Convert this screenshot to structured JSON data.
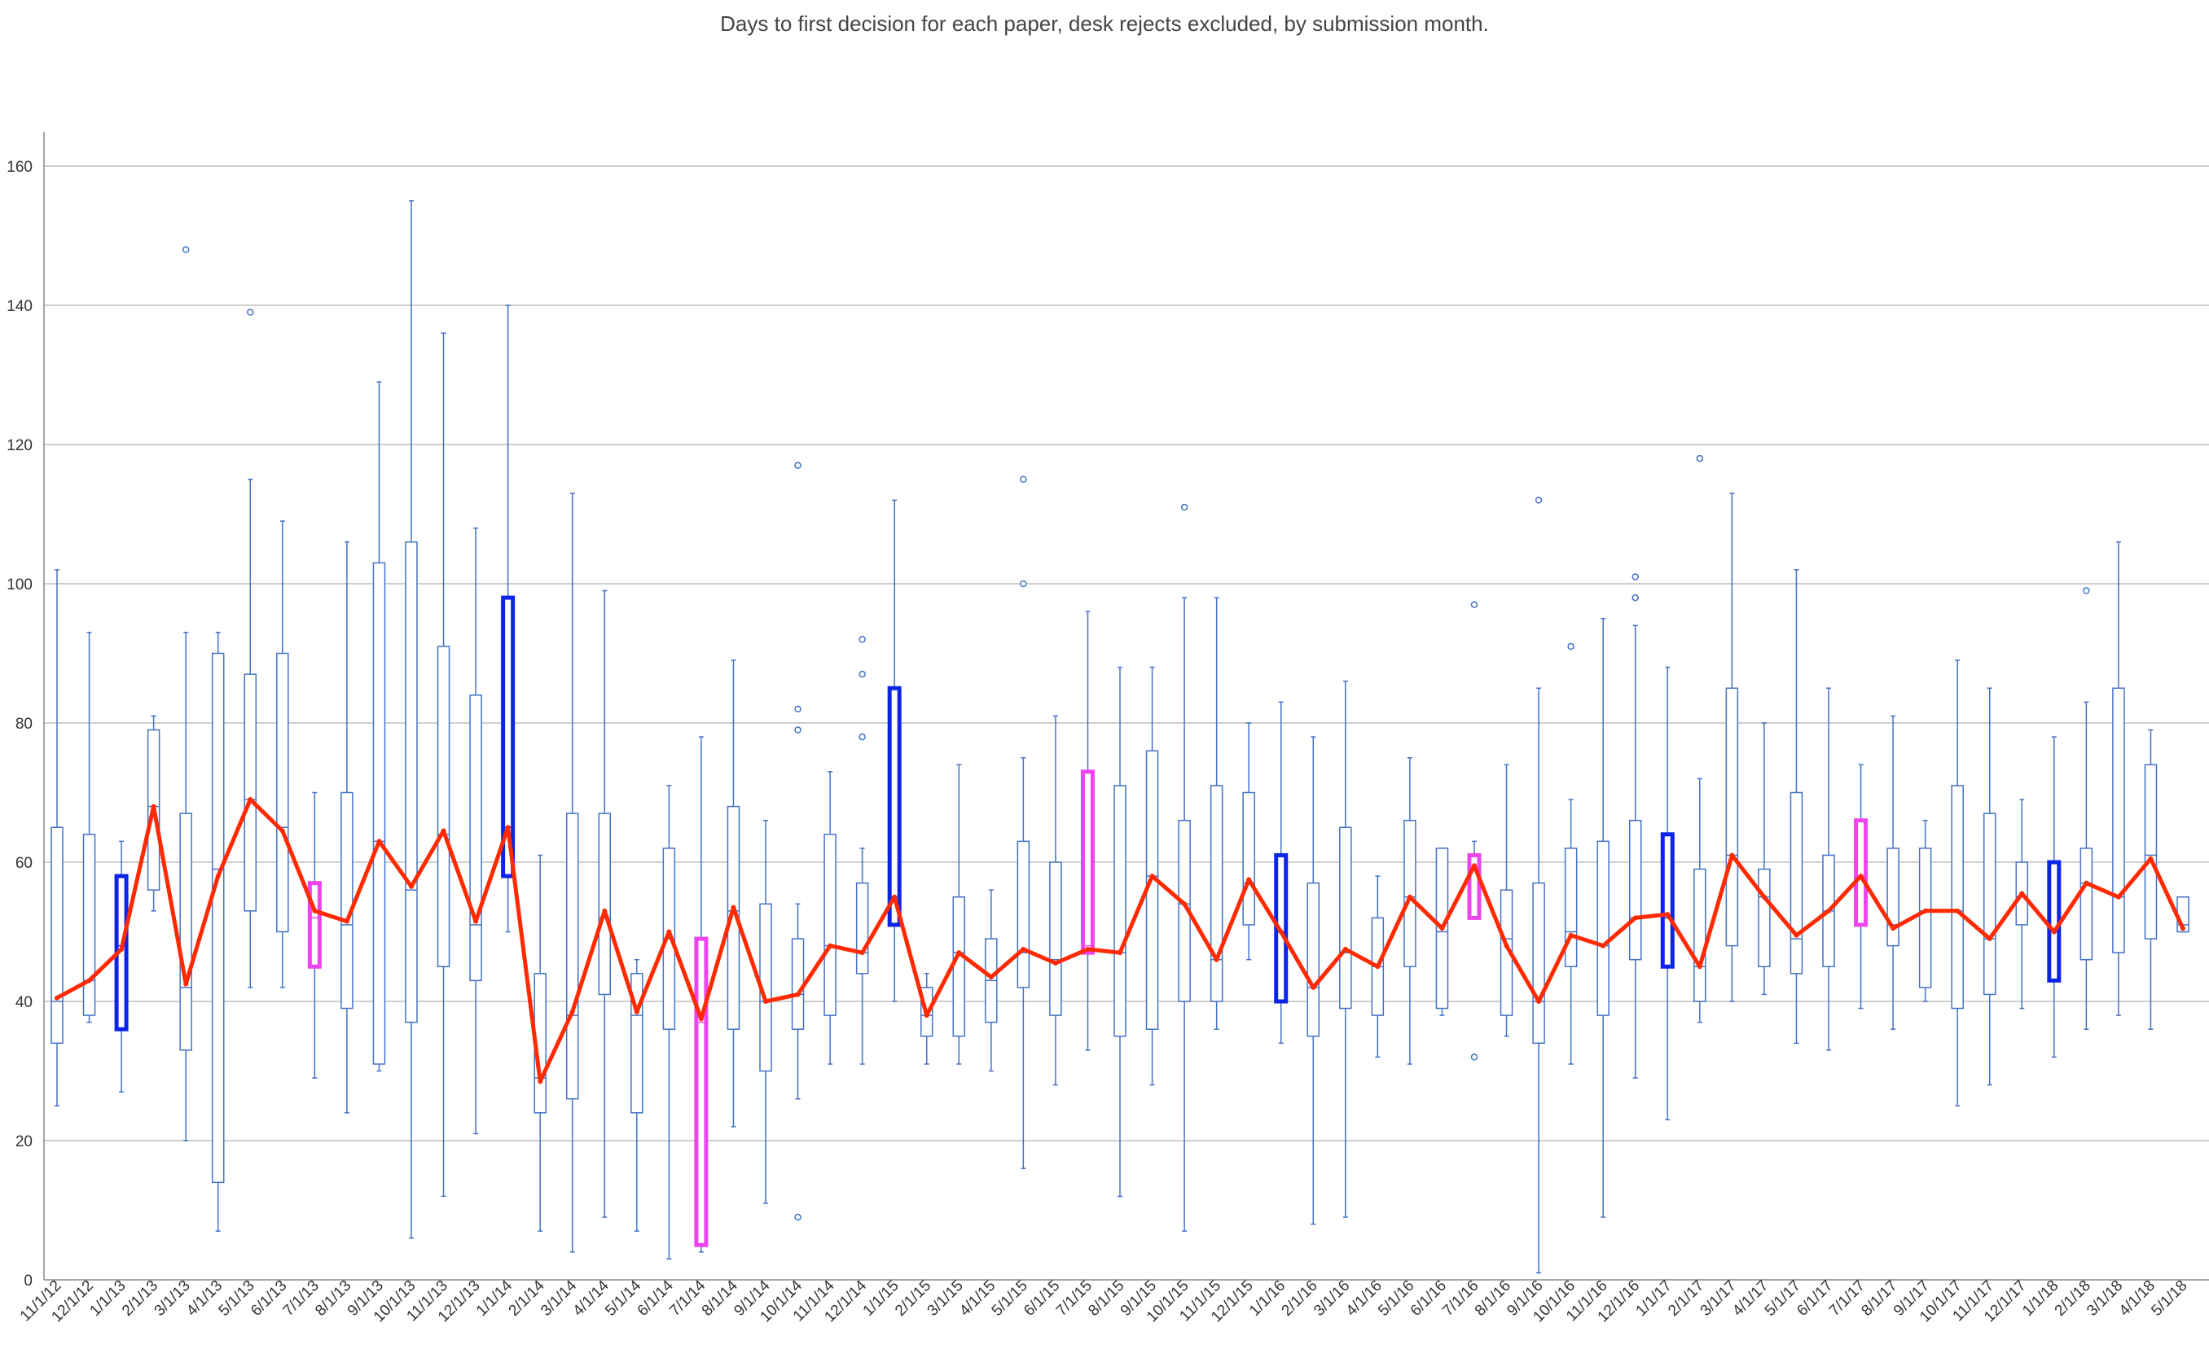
{
  "chart_data": {
    "type": "box",
    "title": "Days to first decision for each paper, desk rejects excluded, by submission month.",
    "xlabel": "",
    "ylabel": "",
    "ylim": [
      0,
      160
    ],
    "yticks": [
      0,
      20,
      40,
      60,
      80,
      100,
      120,
      140,
      160
    ],
    "grid": true,
    "legend": "none",
    "colors": {
      "box": "#4472C4",
      "mean_line": "#FF2A00",
      "highlight_jan": "#0B24E6",
      "highlight_jul": "#EE44EE"
    },
    "categories": [
      "11/1/12",
      "12/1/12",
      "1/1/13",
      "2/1/13",
      "3/1/13",
      "4/1/13",
      "5/1/13",
      "6/1/13",
      "7/1/13",
      "8/1/13",
      "9/1/13",
      "10/1/13",
      "11/1/13",
      "12/1/13",
      "1/1/14",
      "2/1/14",
      "3/1/14",
      "4/1/14",
      "5/1/14",
      "6/1/14",
      "7/1/14",
      "8/1/14",
      "9/1/14",
      "10/1/14",
      "11/1/14",
      "12/1/14",
      "1/1/15",
      "2/1/15",
      "3/1/15",
      "4/1/15",
      "5/1/15",
      "6/1/15",
      "7/1/15",
      "8/1/15",
      "9/1/15",
      "10/1/15",
      "11/1/15",
      "12/1/15",
      "1/1/16",
      "2/1/16",
      "3/1/16",
      "4/1/16",
      "5/1/16",
      "6/1/16",
      "7/1/16",
      "8/1/16",
      "9/1/16",
      "10/1/16",
      "11/1/16",
      "12/1/16",
      "1/1/17",
      "2/1/17",
      "3/1/17",
      "4/1/17",
      "5/1/17",
      "6/1/17",
      "7/1/17",
      "8/1/17",
      "9/1/17",
      "10/1/17",
      "11/1/17",
      "12/1/17",
      "1/1/18",
      "2/1/18",
      "3/1/18",
      "4/1/18",
      "5/1/18"
    ],
    "boxes": [
      {
        "min": 25,
        "q1": 34,
        "median": 40,
        "q3": 65,
        "max": 102,
        "outliers": []
      },
      {
        "min": 37,
        "q1": 38,
        "median": 43,
        "q3": 64,
        "max": 93,
        "outliers": []
      },
      {
        "min": 27,
        "q1": 36,
        "median": 48,
        "q3": 58,
        "max": 63,
        "outliers": [],
        "highlight": "jan"
      },
      {
        "min": 53,
        "q1": 56,
        "median": 68,
        "q3": 79,
        "max": 81,
        "outliers": []
      },
      {
        "min": 20,
        "q1": 33,
        "median": 42,
        "q3": 67,
        "max": 93,
        "outliers": [
          148
        ]
      },
      {
        "min": 7,
        "q1": 14,
        "median": 59,
        "q3": 90,
        "max": 93,
        "outliers": []
      },
      {
        "min": 42,
        "q1": 53,
        "median": 69,
        "q3": 87,
        "max": 115,
        "outliers": [
          139
        ]
      },
      {
        "min": 42,
        "q1": 50,
        "median": 65,
        "q3": 90,
        "max": 109,
        "outliers": []
      },
      {
        "min": 29,
        "q1": 45,
        "median": 52,
        "q3": 57,
        "max": 70,
        "outliers": [],
        "highlight": "jul"
      },
      {
        "min": 24,
        "q1": 39,
        "median": 51,
        "q3": 70,
        "max": 106,
        "outliers": []
      },
      {
        "min": 30,
        "q1": 31,
        "median": 63,
        "q3": 103,
        "max": 129,
        "outliers": []
      },
      {
        "min": 6,
        "q1": 37,
        "median": 56,
        "q3": 106,
        "max": 155,
        "outliers": []
      },
      {
        "min": 12,
        "q1": 45,
        "median": 64,
        "q3": 91,
        "max": 136,
        "outliers": []
      },
      {
        "min": 21,
        "q1": 43,
        "median": 51,
        "q3": 84,
        "max": 108,
        "outliers": []
      },
      {
        "min": 50,
        "q1": 58,
        "median": 65,
        "q3": 98,
        "max": 140,
        "outliers": [],
        "highlight": "jan"
      },
      {
        "min": 7,
        "q1": 24,
        "median": 29,
        "q3": 44,
        "max": 61,
        "outliers": []
      },
      {
        "min": 4,
        "q1": 26,
        "median": 38,
        "q3": 67,
        "max": 113,
        "outliers": []
      },
      {
        "min": 9,
        "q1": 41,
        "median": 52,
        "q3": 67,
        "max": 99,
        "outliers": []
      },
      {
        "min": 7,
        "q1": 24,
        "median": 38,
        "q3": 44,
        "max": 46,
        "outliers": []
      },
      {
        "min": 3,
        "q1": 36,
        "median": 49,
        "q3": 62,
        "max": 71,
        "outliers": []
      },
      {
        "min": 4,
        "q1": 5,
        "median": 37,
        "q3": 49,
        "max": 78,
        "outliers": [],
        "highlight": "jul"
      },
      {
        "min": 22,
        "q1": 36,
        "median": 53,
        "q3": 68,
        "max": 89,
        "outliers": []
      },
      {
        "min": 11,
        "q1": 30,
        "median": 40,
        "q3": 54,
        "max": 66,
        "outliers": []
      },
      {
        "min": 26,
        "q1": 36,
        "median": 41,
        "q3": 49,
        "max": 54,
        "outliers": [
          117,
          82,
          79,
          9
        ]
      },
      {
        "min": 31,
        "q1": 38,
        "median": 48,
        "q3": 64,
        "max": 73,
        "outliers": []
      },
      {
        "min": 31,
        "q1": 44,
        "median": 47,
        "q3": 57,
        "max": 62,
        "outliers": [
          92,
          87,
          78
        ]
      },
      {
        "min": 40,
        "q1": 51,
        "median": 55,
        "q3": 85,
        "max": 112,
        "outliers": [],
        "highlight": "jan"
      },
      {
        "min": 31,
        "q1": 35,
        "median": 38,
        "q3": 42,
        "max": 44,
        "outliers": []
      },
      {
        "min": 31,
        "q1": 35,
        "median": 47,
        "q3": 55,
        "max": 74,
        "outliers": []
      },
      {
        "min": 30,
        "q1": 37,
        "median": 43,
        "q3": 49,
        "max": 56,
        "outliers": []
      },
      {
        "min": 16,
        "q1": 42,
        "median": 47,
        "q3": 63,
        "max": 75,
        "outliers": [
          115,
          100
        ]
      },
      {
        "min": 28,
        "q1": 38,
        "median": 46,
        "q3": 60,
        "max": 81,
        "outliers": []
      },
      {
        "min": 33,
        "q1": 47,
        "median": 48,
        "q3": 73,
        "max": 96,
        "outliers": [],
        "highlight": "jul"
      },
      {
        "min": 12,
        "q1": 35,
        "median": 47,
        "q3": 71,
        "max": 88,
        "outliers": []
      },
      {
        "min": 28,
        "q1": 36,
        "median": 58,
        "q3": 76,
        "max": 88,
        "outliers": []
      },
      {
        "min": 7,
        "q1": 40,
        "median": 54,
        "q3": 66,
        "max": 98,
        "outliers": [
          111
        ]
      },
      {
        "min": 36,
        "q1": 40,
        "median": 46,
        "q3": 71,
        "max": 98,
        "outliers": []
      },
      {
        "min": 46,
        "q1": 51,
        "median": 57,
        "q3": 70,
        "max": 80,
        "outliers": []
      },
      {
        "min": 34,
        "q1": 40,
        "median": 50,
        "q3": 61,
        "max": 83,
        "outliers": [],
        "highlight": "jan"
      },
      {
        "min": 8,
        "q1": 35,
        "median": 42,
        "q3": 57,
        "max": 78,
        "outliers": []
      },
      {
        "min": 9,
        "q1": 39,
        "median": 47,
        "q3": 65,
        "max": 86,
        "outliers": []
      },
      {
        "min": 32,
        "q1": 38,
        "median": 45,
        "q3": 52,
        "max": 58,
        "outliers": []
      },
      {
        "min": 31,
        "q1": 45,
        "median": 55,
        "q3": 66,
        "max": 75,
        "outliers": []
      },
      {
        "min": 38,
        "q1": 39,
        "median": 50,
        "q3": 62,
        "max": 62,
        "outliers": []
      },
      {
        "min": 52,
        "q1": 52,
        "median": 59,
        "q3": 61,
        "max": 63,
        "outliers": [
          97,
          32
        ],
        "highlight": "jul"
      },
      {
        "min": 35,
        "q1": 38,
        "median": 49,
        "q3": 56,
        "max": 74,
        "outliers": []
      },
      {
        "min": 1,
        "q1": 34,
        "median": 40,
        "q3": 57,
        "max": 85,
        "outliers": [
          112
        ]
      },
      {
        "min": 31,
        "q1": 45,
        "median": 50,
        "q3": 62,
        "max": 69,
        "outliers": [
          91
        ]
      },
      {
        "min": 9,
        "q1": 38,
        "median": 48,
        "q3": 63,
        "max": 95,
        "outliers": []
      },
      {
        "min": 29,
        "q1": 46,
        "median": 52,
        "q3": 66,
        "max": 94,
        "outliers": [
          101,
          98
        ]
      },
      {
        "min": 23,
        "q1": 45,
        "median": 52,
        "q3": 64,
        "max": 88,
        "outliers": [],
        "highlight": "jan"
      },
      {
        "min": 37,
        "q1": 40,
        "median": 45,
        "q3": 59,
        "max": 72,
        "outliers": [
          118
        ]
      },
      {
        "min": 40,
        "q1": 48,
        "median": 61,
        "q3": 85,
        "max": 113,
        "outliers": []
      },
      {
        "min": 41,
        "q1": 45,
        "median": 55,
        "q3": 59,
        "max": 80,
        "outliers": []
      },
      {
        "min": 34,
        "q1": 44,
        "median": 49,
        "q3": 70,
        "max": 102,
        "outliers": []
      },
      {
        "min": 33,
        "q1": 45,
        "median": 53,
        "q3": 61,
        "max": 85,
        "outliers": []
      },
      {
        "min": 39,
        "q1": 51,
        "median": 58,
        "q3": 66,
        "max": 74,
        "outliers": [],
        "highlight": "jul"
      },
      {
        "min": 36,
        "q1": 48,
        "median": 51,
        "q3": 62,
        "max": 81,
        "outliers": []
      },
      {
        "min": 40,
        "q1": 42,
        "median": 53,
        "q3": 62,
        "max": 66,
        "outliers": []
      },
      {
        "min": 25,
        "q1": 39,
        "median": 53,
        "q3": 71,
        "max": 89,
        "outliers": []
      },
      {
        "min": 28,
        "q1": 41,
        "median": 49,
        "q3": 67,
        "max": 85,
        "outliers": []
      },
      {
        "min": 39,
        "q1": 51,
        "median": 55,
        "q3": 60,
        "max": 69,
        "outliers": []
      },
      {
        "min": 32,
        "q1": 43,
        "median": 50,
        "q3": 60,
        "max": 78,
        "outliers": [],
        "highlight": "jan"
      },
      {
        "min": 36,
        "q1": 46,
        "median": 57,
        "q3": 62,
        "max": 83,
        "outliers": [
          99
        ]
      },
      {
        "min": 38,
        "q1": 47,
        "median": 55,
        "q3": 85,
        "max": 106,
        "outliers": []
      },
      {
        "min": 36,
        "q1": 49,
        "median": 61,
        "q3": 74,
        "max": 79,
        "outliers": []
      },
      {
        "min": 50,
        "q1": 50,
        "median": 51,
        "q3": 55,
        "max": 55,
        "outliers": []
      }
    ],
    "mean_line": [
      40.5,
      43,
      47.5,
      68,
      42.5,
      58,
      69,
      64.5,
      53,
      51.5,
      63,
      56.5,
      64.5,
      51.5,
      65,
      28.5,
      38.5,
      53,
      38.5,
      50,
      37.5,
      53.5,
      40,
      41,
      48,
      47,
      55,
      38,
      47,
      43.5,
      47.5,
      45.5,
      47.5,
      47,
      58,
      54,
      46,
      57.5,
      50,
      42,
      47.5,
      45,
      55,
      50.5,
      59.5,
      48,
      40,
      49.5,
      48,
      52,
      52.5,
      45,
      61,
      55,
      49.5,
      53,
      58,
      50.5,
      53,
      53,
      49,
      55.5,
      50,
      57,
      55,
      60.5,
      50.5
    ]
  }
}
